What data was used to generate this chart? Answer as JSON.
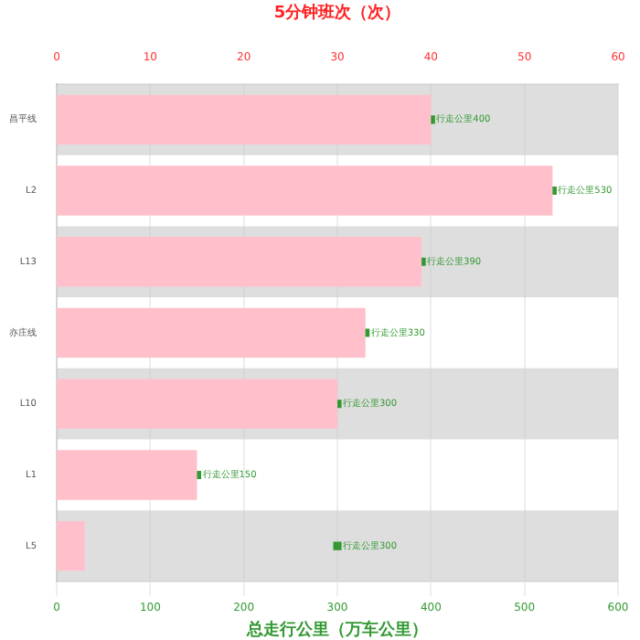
{
  "chart_data": {
    "type": "bar",
    "orientation": "horizontal",
    "x2label": "5分钟班次（次）",
    "xlabel": "总走行公里（万车公里）",
    "categories": [
      "昌平线",
      "L2",
      "L13",
      "亦庄线",
      "L10",
      "L1",
      "L5"
    ],
    "series": [
      {
        "axis": "x2",
        "color": "#ffc0cb",
        "values": [
          40,
          53,
          39,
          33,
          30,
          15,
          3
        ]
      },
      {
        "type": "scatter",
        "color": "#339933",
        "values": [
          400,
          530,
          390,
          330,
          300,
          150,
          300
        ],
        "value_labels": [
          "行走公里400",
          "行走公里530",
          "行走公里390",
          "行走公里330",
          "行走公里300",
          "行走公里150",
          "行走公里300"
        ]
      }
    ],
    "xlim": [
      0,
      600
    ],
    "xticks": [
      0,
      100,
      200,
      300,
      400,
      500,
      600
    ],
    "x2lim": [
      0,
      60
    ],
    "x2ticks": [
      0,
      10,
      20,
      30,
      40,
      50,
      60
    ],
    "grid": "x",
    "legend": false,
    "marker": "square"
  }
}
